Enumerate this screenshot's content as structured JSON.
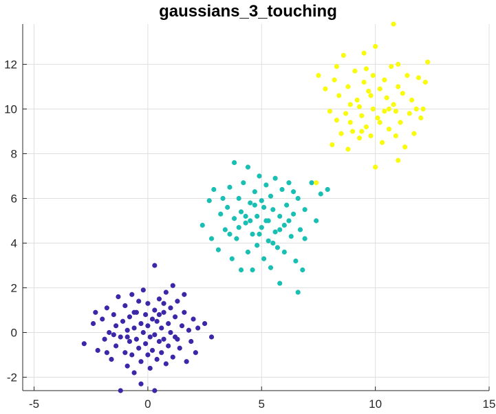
{
  "chart_data": {
    "type": "scatter",
    "title": "gaussians_3_touching",
    "xlabel": "",
    "ylabel": "",
    "xlim": [
      -5.5,
      15
    ],
    "ylim": [
      -2.6,
      13.8
    ],
    "xticks": [
      -5,
      0,
      5,
      10,
      15
    ],
    "yticks": [
      -2,
      0,
      2,
      4,
      6,
      8,
      10,
      12
    ],
    "grid": true,
    "colors": [
      "#3d26a8",
      "#1abfb3",
      "#f9fb0e"
    ],
    "series": [
      {
        "color": "#3d26a8",
        "points": [
          [
            -2.8,
            -0.5
          ],
          [
            -2.4,
            0.4
          ],
          [
            -2.2,
            -0.8
          ],
          [
            -2.0,
            0.6
          ],
          [
            -1.9,
            -0.3
          ],
          [
            -1.8,
            1.1
          ],
          [
            -1.7,
            0.0
          ],
          [
            -1.6,
            -1.2
          ],
          [
            -1.5,
            0.8
          ],
          [
            -1.4,
            -0.6
          ],
          [
            -1.4,
            0.3
          ],
          [
            -1.3,
            1.6
          ],
          [
            -1.2,
            -0.2
          ],
          [
            -1.2,
            -2.6
          ],
          [
            -1.1,
            0.5
          ],
          [
            -1.0,
            -0.9
          ],
          [
            -1.0,
            1.2
          ],
          [
            -0.9,
            0.1
          ],
          [
            -0.9,
            -1.5
          ],
          [
            -0.8,
            0.7
          ],
          [
            -0.8,
            -0.4
          ],
          [
            -0.7,
            1.7
          ],
          [
            -0.7,
            -1.0
          ],
          [
            -0.6,
            0.2
          ],
          [
            -0.6,
            -1.8
          ],
          [
            -0.5,
            0.9
          ],
          [
            -0.5,
            -0.3
          ],
          [
            -0.4,
            1.4
          ],
          [
            -0.4,
            -0.7
          ],
          [
            -0.3,
            0.4
          ],
          [
            -0.3,
            -1.3
          ],
          [
            -0.2,
            1.9
          ],
          [
            -0.2,
            0.0
          ],
          [
            -0.1,
            -0.5
          ],
          [
            -0.1,
            0.8
          ],
          [
            0.0,
            -1.0
          ],
          [
            0.0,
            0.3
          ],
          [
            0.0,
            1.3
          ],
          [
            0.1,
            -0.2
          ],
          [
            0.1,
            -1.6
          ],
          [
            0.2,
            0.6
          ],
          [
            0.2,
            -0.8
          ],
          [
            0.3,
            1.0
          ],
          [
            0.3,
            -0.1
          ],
          [
            0.3,
            3.0
          ],
          [
            0.4,
            -1.2
          ],
          [
            0.4,
            0.5
          ],
          [
            0.5,
            -0.4
          ],
          [
            0.5,
            1.5
          ],
          [
            0.6,
            0.2
          ],
          [
            0.6,
            -0.9
          ],
          [
            0.7,
            0.9
          ],
          [
            0.7,
            -0.3
          ],
          [
            0.8,
            1.8
          ],
          [
            0.8,
            -1.4
          ],
          [
            0.9,
            0.4
          ],
          [
            0.9,
            -0.6
          ],
          [
            1.0,
            1.1
          ],
          [
            1.0,
            0.0
          ],
          [
            1.1,
            2.1
          ],
          [
            1.1,
            -1.1
          ],
          [
            1.2,
            0.7
          ],
          [
            1.2,
            -0.2
          ],
          [
            1.3,
            1.4
          ],
          [
            1.4,
            -0.7
          ],
          [
            1.5,
            0.3
          ],
          [
            1.6,
            0.9
          ],
          [
            1.7,
            -1.3
          ],
          [
            1.8,
            0.1
          ],
          [
            1.9,
            -0.4
          ],
          [
            2.0,
            0.6
          ],
          [
            2.1,
            -0.9
          ],
          [
            2.2,
            0.2
          ],
          [
            2.5,
            0.4
          ],
          [
            2.8,
            -0.2
          ],
          [
            -0.3,
            -2.3
          ],
          [
            0.3,
            -2.6
          ],
          [
            -1.8,
            -0.9
          ],
          [
            -2.3,
            0.9
          ],
          [
            1.6,
            1.7
          ],
          [
            -0.6,
            0.9
          ],
          [
            0.5,
            0.8
          ],
          [
            -1.5,
            -0.1
          ],
          [
            1.3,
            -0.3
          ],
          [
            -0.9,
            -0.2
          ],
          [
            0.7,
            1.3
          ]
        ]
      },
      {
        "color": "#1abfb3",
        "points": [
          [
            2.4,
            4.8
          ],
          [
            2.7,
            5.9
          ],
          [
            2.8,
            4.2
          ],
          [
            2.9,
            6.4
          ],
          [
            3.1,
            3.7
          ],
          [
            3.2,
            5.3
          ],
          [
            3.3,
            6.0
          ],
          [
            3.4,
            4.6
          ],
          [
            3.5,
            5.6
          ],
          [
            3.6,
            6.5
          ],
          [
            3.7,
            3.3
          ],
          [
            3.8,
            7.6
          ],
          [
            3.8,
            5.1
          ],
          [
            3.9,
            4.2
          ],
          [
            4.0,
            6.0
          ],
          [
            4.1,
            2.8
          ],
          [
            4.1,
            5.4
          ],
          [
            4.2,
            6.7
          ],
          [
            4.3,
            4.9
          ],
          [
            4.4,
            3.6
          ],
          [
            4.4,
            7.4
          ],
          [
            4.5,
            5.8
          ],
          [
            4.6,
            4.4
          ],
          [
            4.6,
            2.8
          ],
          [
            4.7,
            6.3
          ],
          [
            4.8,
            5.2
          ],
          [
            4.8,
            3.9
          ],
          [
            4.9,
            7.0
          ],
          [
            5.0,
            4.7
          ],
          [
            5.0,
            5.9
          ],
          [
            5.1,
            3.3
          ],
          [
            5.2,
            6.6
          ],
          [
            5.2,
            5.0
          ],
          [
            5.3,
            4.1
          ],
          [
            5.4,
            6.1
          ],
          [
            5.4,
            2.9
          ],
          [
            5.5,
            5.5
          ],
          [
            5.6,
            4.5
          ],
          [
            5.6,
            6.9
          ],
          [
            5.7,
            3.8
          ],
          [
            5.8,
            5.2
          ],
          [
            5.8,
            2.2
          ],
          [
            5.9,
            6.4
          ],
          [
            6.0,
            4.8
          ],
          [
            6.0,
            3.6
          ],
          [
            6.1,
            5.7
          ],
          [
            6.2,
            6.7
          ],
          [
            6.3,
            4.3
          ],
          [
            6.4,
            5.3
          ],
          [
            6.5,
            3.2
          ],
          [
            6.6,
            6.0
          ],
          [
            6.6,
            1.8
          ],
          [
            6.7,
            4.6
          ],
          [
            6.8,
            2.8
          ],
          [
            6.9,
            5.5
          ],
          [
            7.2,
            6.7
          ],
          [
            7.4,
            5.0
          ],
          [
            7.6,
            6.2
          ],
          [
            7.9,
            6.4
          ],
          [
            4.3,
            5.2
          ],
          [
            4.9,
            4.4
          ],
          [
            5.5,
            4.0
          ],
          [
            6.2,
            5.0
          ],
          [
            5.1,
            5.6
          ],
          [
            4.5,
            5.0
          ],
          [
            5.8,
            4.6
          ],
          [
            3.6,
            4.4
          ],
          [
            6.9,
            4.2
          ],
          [
            5.3,
            5.0
          ],
          [
            4.0,
            4.7
          ],
          [
            6.4,
            6.3
          ],
          [
            4.7,
            5.7
          ]
        ]
      },
      {
        "color": "#f9fb0e",
        "points": [
          [
            7.4,
            6.7
          ],
          [
            7.5,
            11.5
          ],
          [
            7.8,
            10.9
          ],
          [
            8.0,
            9.9
          ],
          [
            8.1,
            8.4
          ],
          [
            8.2,
            11.3
          ],
          [
            8.3,
            9.5
          ],
          [
            8.4,
            10.6
          ],
          [
            8.5,
            8.9
          ],
          [
            8.6,
            12.4
          ],
          [
            8.7,
            9.8
          ],
          [
            8.8,
            11.0
          ],
          [
            8.8,
            8.2
          ],
          [
            8.9,
            10.2
          ],
          [
            9.0,
            9.0
          ],
          [
            9.1,
            11.7
          ],
          [
            9.2,
            10.4
          ],
          [
            9.3,
            8.7
          ],
          [
            9.4,
            9.7
          ],
          [
            9.5,
            11.2
          ],
          [
            9.5,
            12.5
          ],
          [
            9.6,
            9.2
          ],
          [
            9.7,
            10.8
          ],
          [
            9.8,
            8.8
          ],
          [
            9.9,
            11.5
          ],
          [
            9.9,
            10.0
          ],
          [
            10.0,
            7.4
          ],
          [
            10.0,
            12.8
          ],
          [
            10.1,
            9.6
          ],
          [
            10.2,
            10.9
          ],
          [
            10.3,
            8.5
          ],
          [
            10.4,
            11.3
          ],
          [
            10.4,
            9.9
          ],
          [
            10.5,
            10.5
          ],
          [
            10.6,
            9.1
          ],
          [
            10.7,
            11.9
          ],
          [
            10.8,
            10.2
          ],
          [
            10.8,
            13.8
          ],
          [
            10.9,
            8.8
          ],
          [
            11.0,
            11.0
          ],
          [
            11.0,
            7.7
          ],
          [
            11.1,
            9.4
          ],
          [
            11.2,
            10.7
          ],
          [
            11.3,
            8.3
          ],
          [
            11.4,
            11.5
          ],
          [
            11.5,
            9.8
          ],
          [
            11.6,
            10.4
          ],
          [
            11.7,
            8.9
          ],
          [
            11.8,
            10.0
          ],
          [
            11.9,
            11.4
          ],
          [
            12.0,
            9.6
          ],
          [
            12.1,
            10.0
          ],
          [
            12.3,
            12.1
          ],
          [
            12.2,
            11.2
          ],
          [
            9.3,
            10.1
          ],
          [
            9.8,
            10.6
          ],
          [
            10.2,
            9.4
          ],
          [
            10.6,
            10.0
          ],
          [
            9.6,
            11.8
          ],
          [
            11.0,
            12.0
          ],
          [
            8.3,
            11.9
          ],
          [
            8.9,
            9.4
          ],
          [
            10.9,
            9.9
          ],
          [
            9.4,
            9.0
          ]
        ]
      }
    ]
  }
}
